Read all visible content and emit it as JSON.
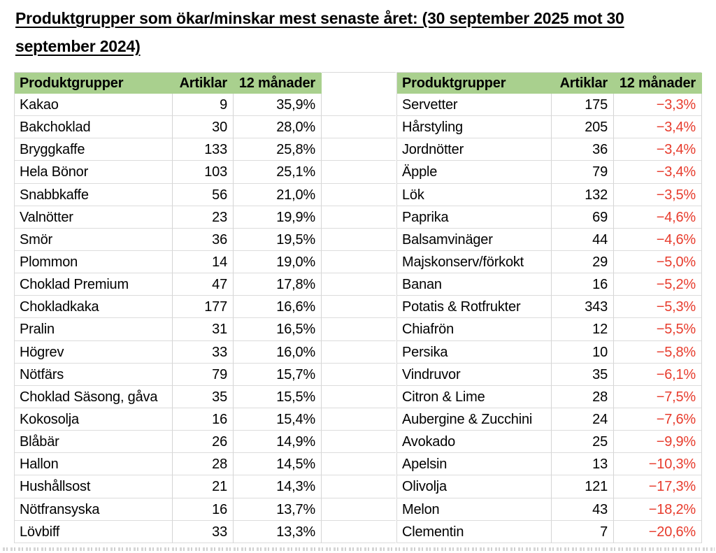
{
  "title": {
    "line1": "Produktgrupper som ökar/minskar mest senaste året: (30 september 2025 mot 30",
    "line2": "september 2024)"
  },
  "colors": {
    "header_bg": "#a9d08e",
    "negative_text": "#e73b2c",
    "positive_text": "#000000",
    "gridline": "#d9d9d9"
  },
  "table_headers": [
    "Produktgrupper",
    "Artiklar",
    "12 månader"
  ],
  "left_table": {
    "rows": [
      [
        "Kakao",
        "9",
        "35,9%"
      ],
      [
        "Bakchoklad",
        "30",
        "28,0%"
      ],
      [
        "Bryggkaffe",
        "133",
        "25,8%"
      ],
      [
        "Hela Bönor",
        "103",
        "25,1%"
      ],
      [
        "Snabbkaffe",
        "56",
        "21,0%"
      ],
      [
        "Valnötter",
        "23",
        "19,9%"
      ],
      [
        "Smör",
        "36",
        "19,5%"
      ],
      [
        "Plommon",
        "14",
        "19,0%"
      ],
      [
        "Choklad Premium",
        "47",
        "17,8%"
      ],
      [
        "Chokladkaka",
        "177",
        "16,6%"
      ],
      [
        "Pralin",
        "31",
        "16,5%"
      ],
      [
        "Högrev",
        "33",
        "16,0%"
      ],
      [
        "Nötfärs",
        "79",
        "15,7%"
      ],
      [
        "Choklad Säsong, gåva",
        "35",
        "15,5%"
      ],
      [
        "Kokosolja",
        "16",
        "15,4%"
      ],
      [
        "Blåbär",
        "26",
        "14,9%"
      ],
      [
        "Hallon",
        "28",
        "14,5%"
      ],
      [
        "Hushållsost",
        "21",
        "14,3%"
      ],
      [
        "Nötfransyska",
        "16",
        "13,7%"
      ],
      [
        "Lövbiff",
        "33",
        "13,3%"
      ]
    ]
  },
  "right_table": {
    "rows": [
      [
        "Servetter",
        "175",
        "−3,3%"
      ],
      [
        "Hårstyling",
        "205",
        "−3,4%"
      ],
      [
        "Jordnötter",
        "36",
        "−3,4%"
      ],
      [
        "Äpple",
        "79",
        "−3,4%"
      ],
      [
        "Lök",
        "132",
        "−3,5%"
      ],
      [
        "Paprika",
        "69",
        "−4,6%"
      ],
      [
        "Balsamvinäger",
        "44",
        "−4,6%"
      ],
      [
        "Majskonserv/förkokt",
        "29",
        "−5,0%"
      ],
      [
        "Banan",
        "16",
        "−5,2%"
      ],
      [
        "Potatis & Rotfrukter",
        "343",
        "−5,3%"
      ],
      [
        "Chiafrön",
        "12",
        "−5,5%"
      ],
      [
        "Persika",
        "10",
        "−5,8%"
      ],
      [
        "Vindruvor",
        "35",
        "−6,1%"
      ],
      [
        "Citron & Lime",
        "28",
        "−7,5%"
      ],
      [
        "Aubergine & Zucchini",
        "24",
        "−7,6%"
      ],
      [
        "Avokado",
        "25",
        "−9,9%"
      ],
      [
        "Apelsin",
        "13",
        "−10,3%"
      ],
      [
        "Olivolja",
        "121",
        "−17,3%"
      ],
      [
        "Melon",
        "43",
        "−18,2%"
      ],
      [
        "Clementin",
        "7",
        "−20,6%"
      ]
    ]
  }
}
